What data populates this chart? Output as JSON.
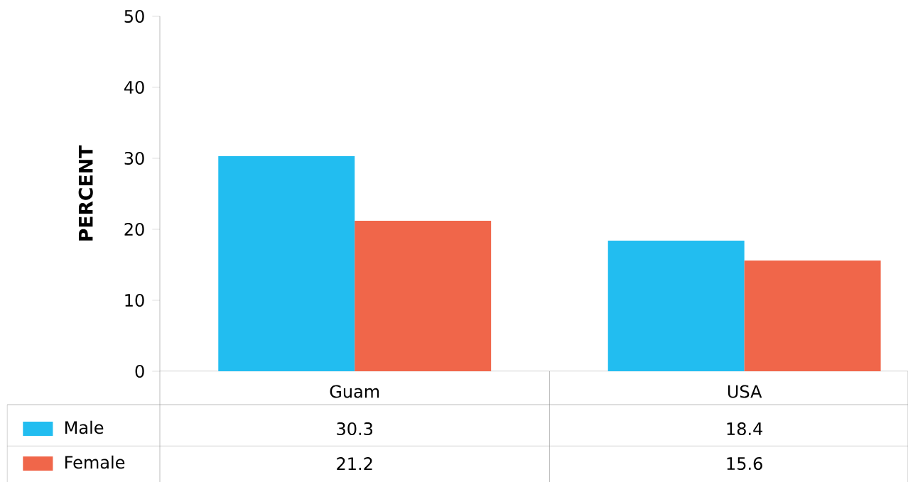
{
  "chart_data": {
    "type": "bar",
    "ylabel": "PERCENT",
    "categories": [
      "Guam",
      "USA"
    ],
    "series": [
      {
        "name": "Male",
        "color": "#22bdf0",
        "values": [
          30.3,
          18.4
        ]
      },
      {
        "name": "Female",
        "color": "#f0664a",
        "values": [
          21.2,
          15.6
        ]
      }
    ],
    "ylim": [
      0,
      50
    ],
    "yticks": [
      0,
      10,
      20,
      30,
      40,
      50
    ],
    "grid": false,
    "legend": "bottom left",
    "data_labels": true
  }
}
